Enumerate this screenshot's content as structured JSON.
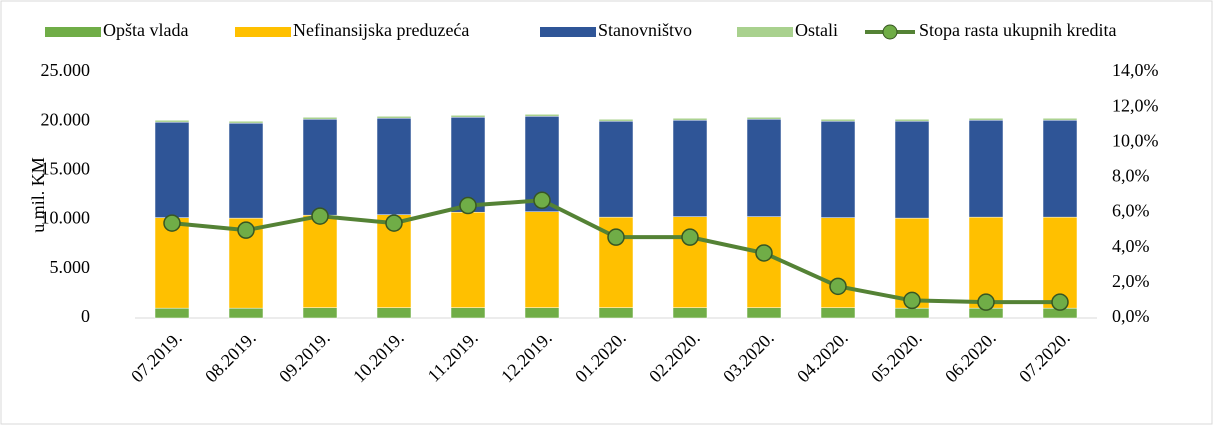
{
  "chart_data": {
    "type": "bar",
    "categories": [
      "07.2019.",
      "08.2019.",
      "09.2019.",
      "10.2019.",
      "11.2019.",
      "12.2019.",
      "01.2020.",
      "02.2020.",
      "03.2020.",
      "04.2020.",
      "05.2020.",
      "06.2020.",
      "07.2020."
    ],
    "y_label": "u mil. KM",
    "stacked": true,
    "series": [
      {
        "name": "Opšta vlada",
        "color": "#70ad47",
        "values": [
          1000,
          1000,
          1050,
          1050,
          1050,
          1050,
          1050,
          1050,
          1050,
          1050,
          1000,
          1000,
          1000
        ]
      },
      {
        "name": "Nefinansijska preduzeća",
        "color": "#ffc000",
        "values": [
          9200,
          9150,
          9400,
          9450,
          9700,
          9750,
          9200,
          9250,
          9250,
          9150,
          9150,
          9250,
          9250
        ]
      },
      {
        "name": "Stanovništvo",
        "color": "#2f5597",
        "values": [
          9700,
          9650,
          9750,
          9800,
          9650,
          9700,
          9750,
          9800,
          9900,
          9800,
          9850,
          9850,
          9850
        ]
      },
      {
        "name": "Ostali",
        "color": "#a9d18e",
        "values": [
          200,
          200,
          200,
          200,
          200,
          200,
          200,
          200,
          200,
          200,
          200,
          200,
          200
        ]
      },
      {
        "name": "Stopa rasta ukupnih kredita",
        "color": "#548235",
        "type": "line",
        "axis": "y2",
        "values": [
          5.4,
          5.0,
          5.8,
          5.4,
          6.4,
          6.7,
          4.6,
          4.6,
          3.7,
          1.8,
          1.0,
          0.9,
          0.9
        ]
      }
    ],
    "ylim": [
      0,
      25000
    ],
    "yticks": [
      0,
      {
        "value": 5000,
        "label": "5.000"
      },
      {
        "value": 10000,
        "label": "10.000"
      },
      {
        "value": 15000,
        "label": "15.000"
      },
      {
        "value": 20000,
        "label": "20.000"
      },
      {
        "value": 25000,
        "label": "25.000"
      }
    ],
    "y2lim": [
      0,
      14
    ],
    "y2ticks": [
      {
        "value": 0,
        "label": "0,0%"
      },
      {
        "value": 2,
        "label": "2,0%"
      },
      {
        "value": 4,
        "label": "4,0%"
      },
      {
        "value": 6,
        "label": "6,0%"
      },
      {
        "value": 8,
        "label": "8,0%"
      },
      {
        "value": 10,
        "label": "10,0%"
      },
      {
        "value": 12,
        "label": "12,0%"
      },
      {
        "value": 14,
        "label": "14,0%"
      }
    ],
    "legend": "top"
  }
}
